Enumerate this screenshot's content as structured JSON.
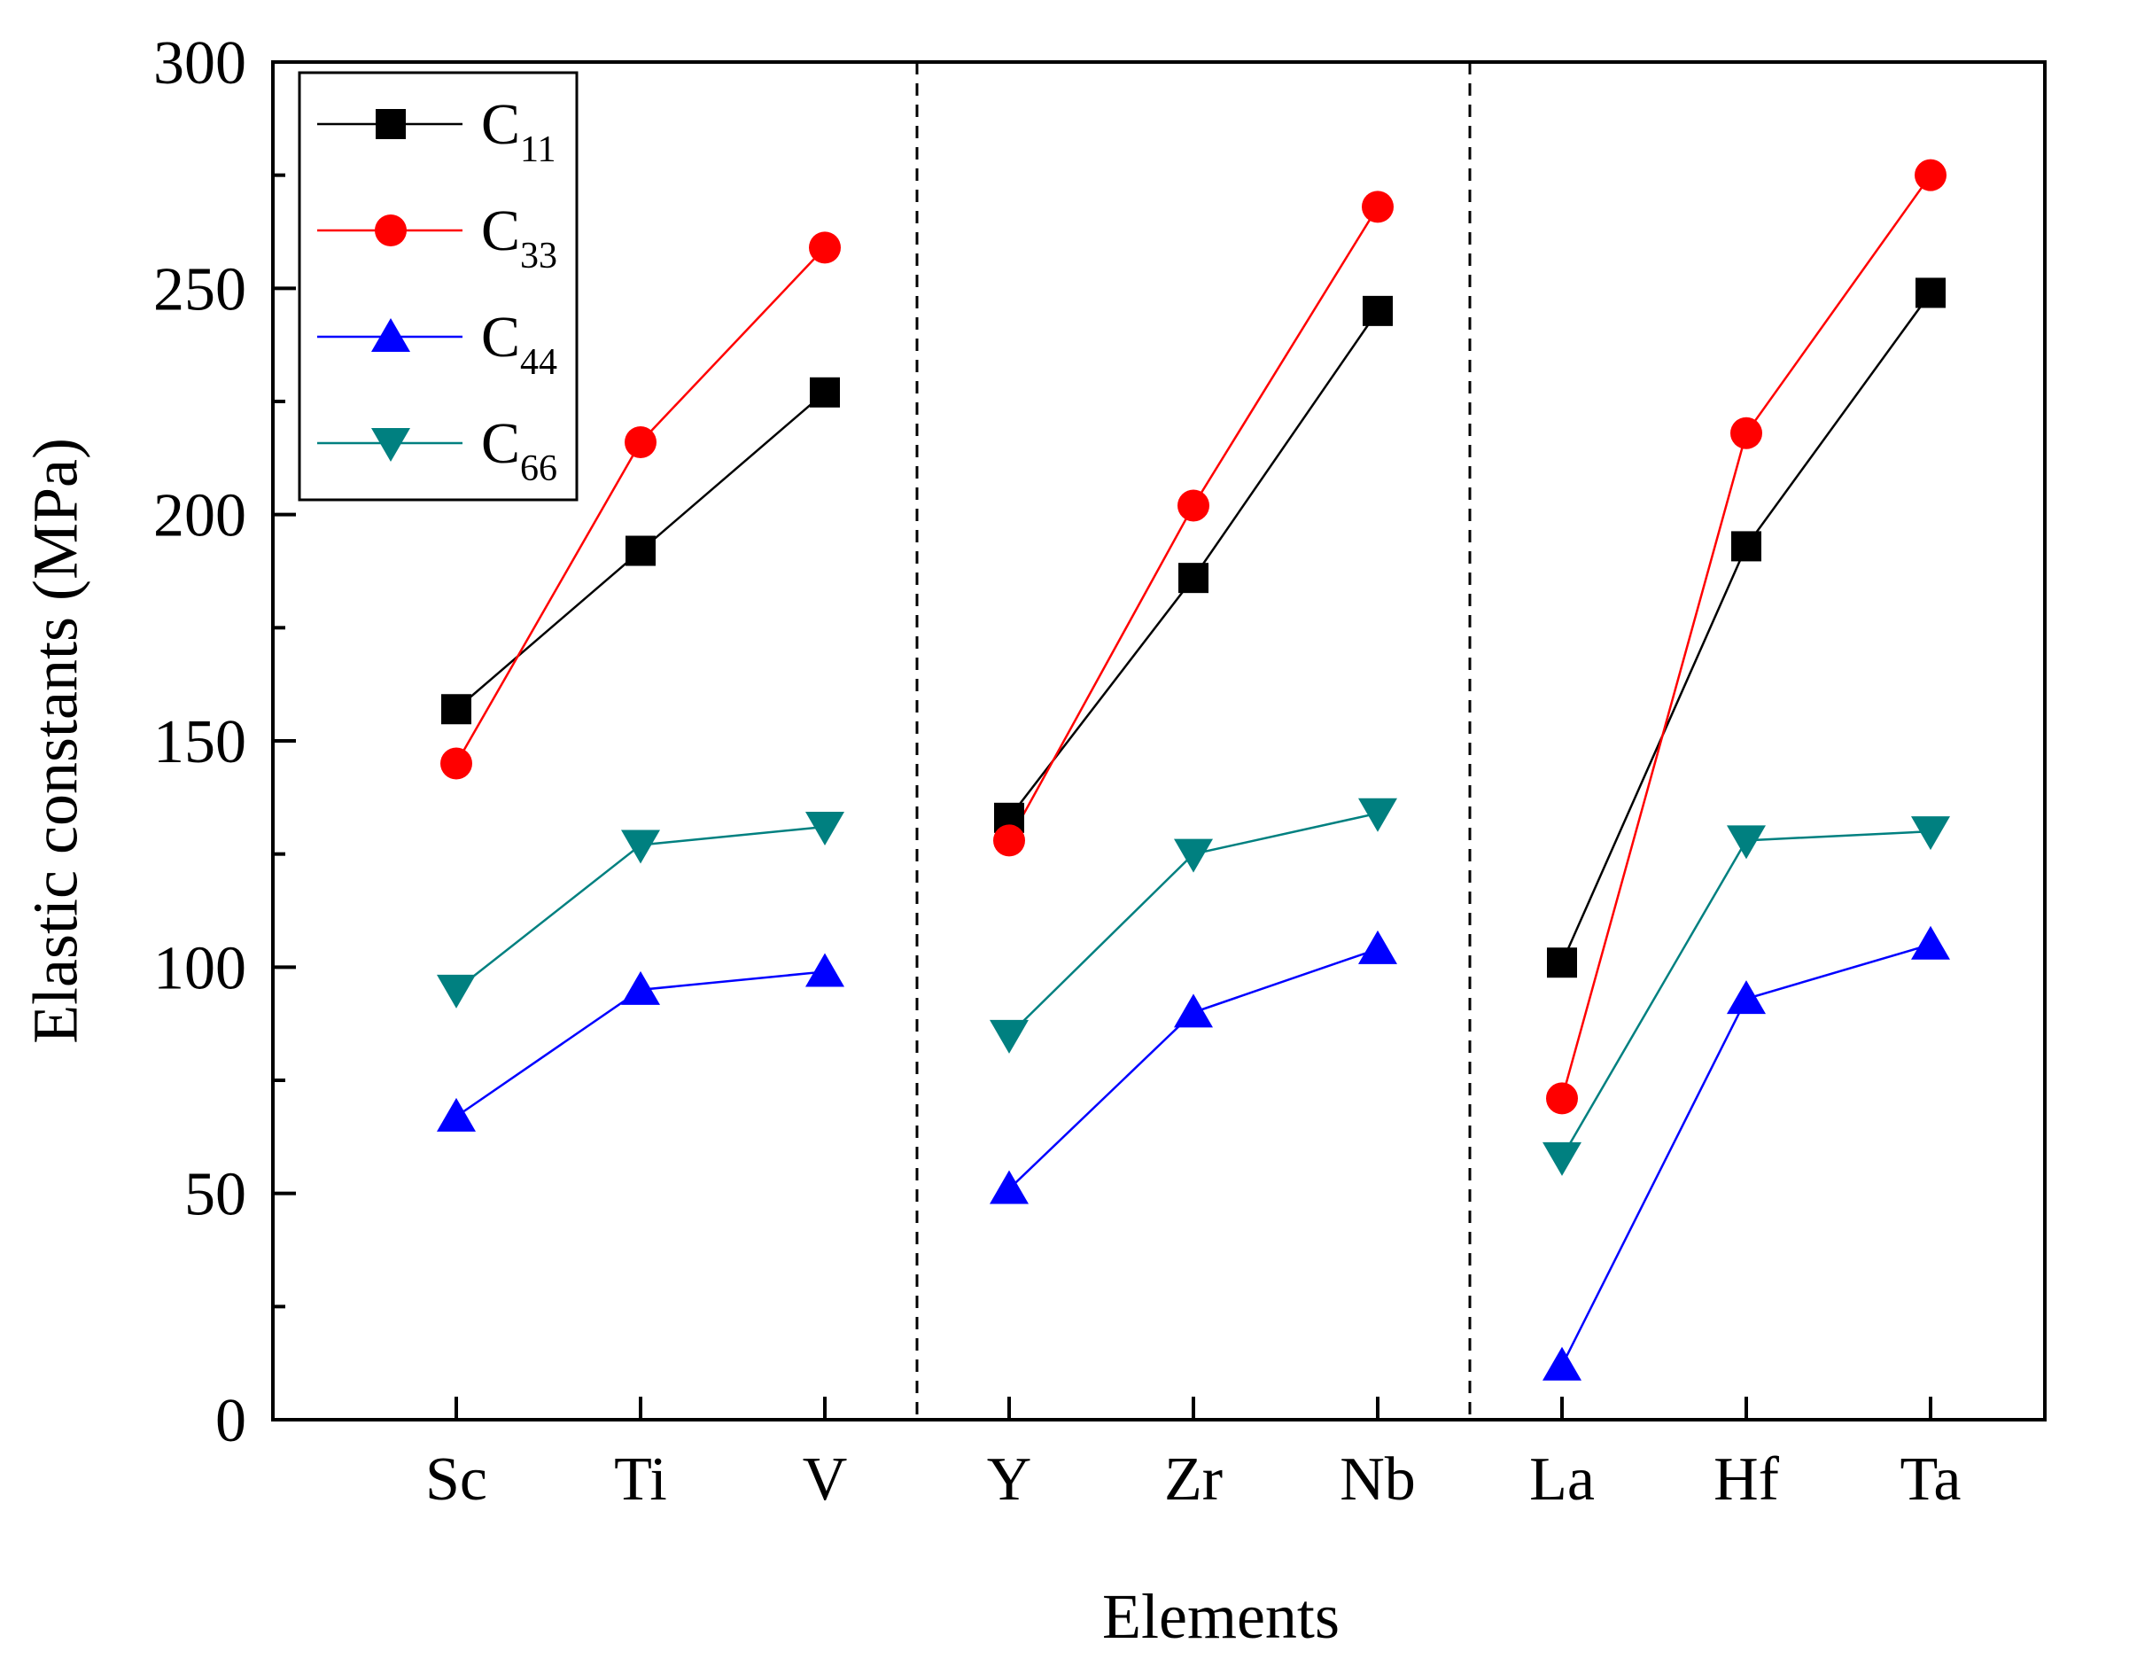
{
  "chart_data": {
    "type": "line",
    "title": "",
    "xlabel": "Elements",
    "ylabel": "Elastic constants (MPa)",
    "ylim": [
      0,
      300
    ],
    "yticks": [
      0,
      50,
      100,
      150,
      200,
      250,
      300
    ],
    "categories": [
      "Sc",
      "Ti",
      "V",
      "Y",
      "Zr",
      "Nb",
      "La",
      "Hf",
      "Ta"
    ],
    "groups": [
      [
        "Sc",
        "Ti",
        "V"
      ],
      [
        "Y",
        "Zr",
        "Nb"
      ],
      [
        "La",
        "Hf",
        "Ta"
      ]
    ],
    "group_separators": "dashed vertical lines between groups",
    "legend_position": "top-left",
    "series": [
      {
        "name": "C11",
        "label_main": "C",
        "label_sub": "11",
        "color": "#000000",
        "marker": "square",
        "values": [
          157,
          192,
          227,
          133,
          186,
          245,
          101,
          193,
          249
        ]
      },
      {
        "name": "C33",
        "label_main": "C",
        "label_sub": "33",
        "color": "#ff0000",
        "marker": "circle",
        "values": [
          145,
          216,
          259,
          128,
          202,
          268,
          71,
          218,
          275
        ]
      },
      {
        "name": "C44",
        "label_main": "C",
        "label_sub": "44",
        "color": "#0000ff",
        "marker": "triangle-up",
        "values": [
          67,
          95,
          99,
          51,
          90,
          104,
          12,
          93,
          105
        ]
      },
      {
        "name": "C66",
        "label_main": "C",
        "label_sub": "66",
        "color": "#008080",
        "marker": "triangle-down",
        "values": [
          95,
          127,
          131,
          85,
          125,
          134,
          58,
          128,
          130
        ]
      }
    ]
  }
}
